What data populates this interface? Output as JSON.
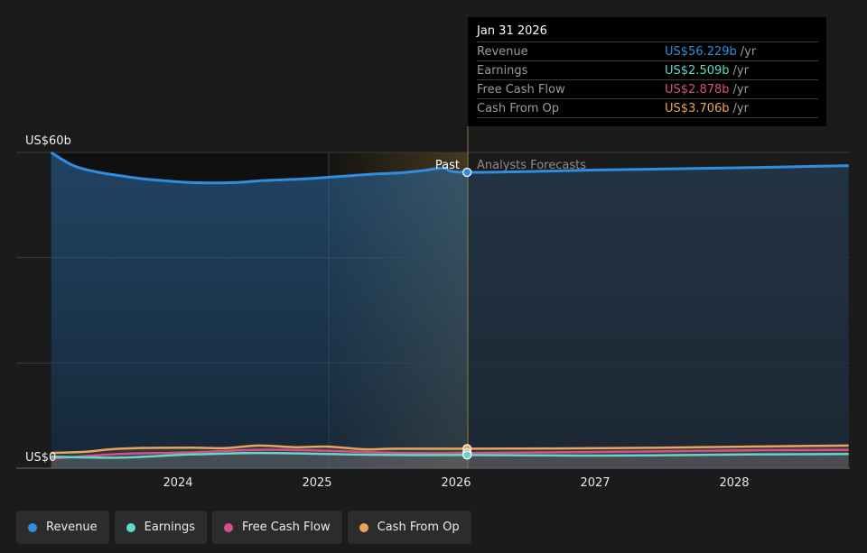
{
  "chart_data": {
    "type": "area",
    "y_axis": {
      "top_label": "US$60b",
      "bottom_label": "US$0",
      "ylim": [
        0,
        60
      ]
    },
    "x_ticks": [
      "2024",
      "2025",
      "2026",
      "2027",
      "2028"
    ],
    "past_label": "Past",
    "forecast_label": "Analysts Forecasts",
    "series": [
      {
        "name": "Revenue",
        "color": "#2e8fe0",
        "points": [
          [
            "2023-02-01",
            60.0
          ],
          [
            "2023-04-01",
            57.5
          ],
          [
            "2023-06-01",
            56.3
          ],
          [
            "2023-08-01",
            55.6
          ],
          [
            "2023-10-01",
            55.0
          ],
          [
            "2023-12-01",
            54.6
          ],
          [
            "2024-02-01",
            54.3
          ],
          [
            "2024-04-01",
            54.2
          ],
          [
            "2024-06-01",
            54.3
          ],
          [
            "2024-08-01",
            54.6
          ],
          [
            "2024-10-01",
            54.8
          ],
          [
            "2024-12-01",
            55.0
          ],
          [
            "2025-02-01",
            55.3
          ],
          [
            "2025-04-01",
            55.6
          ],
          [
            "2025-06-01",
            55.9
          ],
          [
            "2025-08-01",
            56.1
          ],
          [
            "2025-10-01",
            56.5
          ],
          [
            "2025-12-01",
            57.0
          ],
          [
            "2026-01-31",
            56.229
          ],
          [
            "2027-01-31",
            56.7
          ],
          [
            "2028-01-31",
            57.1
          ],
          [
            "2028-10-31",
            57.5
          ]
        ]
      },
      {
        "name": "Earnings",
        "color": "#5fd9c9",
        "points": [
          [
            "2023-02-01",
            2.2
          ],
          [
            "2023-08-01",
            2.0
          ],
          [
            "2024-02-01",
            2.6
          ],
          [
            "2024-08-01",
            2.9
          ],
          [
            "2025-02-01",
            2.7
          ],
          [
            "2025-08-01",
            2.5
          ],
          [
            "2026-01-31",
            2.509
          ],
          [
            "2027-01-31",
            2.4
          ],
          [
            "2028-01-31",
            2.6
          ],
          [
            "2028-10-31",
            2.7
          ]
        ]
      },
      {
        "name": "Free Cash Flow",
        "color": "#d6508a",
        "points": [
          [
            "2023-02-01",
            1.8
          ],
          [
            "2023-08-01",
            2.7
          ],
          [
            "2024-02-01",
            3.0
          ],
          [
            "2024-08-01",
            3.5
          ],
          [
            "2025-02-01",
            3.3
          ],
          [
            "2025-08-01",
            2.9
          ],
          [
            "2026-01-31",
            2.878
          ],
          [
            "2027-01-31",
            3.1
          ],
          [
            "2028-01-31",
            3.4
          ],
          [
            "2028-10-31",
            3.5
          ]
        ]
      },
      {
        "name": "Cash From Op",
        "color": "#e8a65b",
        "points": [
          [
            "2023-02-01",
            2.9
          ],
          [
            "2023-05-01",
            3.1
          ],
          [
            "2023-08-01",
            3.7
          ],
          [
            "2024-02-01",
            3.9
          ],
          [
            "2024-05-01",
            3.8
          ],
          [
            "2024-08-01",
            4.3
          ],
          [
            "2024-11-01",
            4.0
          ],
          [
            "2025-02-01",
            4.1
          ],
          [
            "2025-05-01",
            3.6
          ],
          [
            "2025-08-01",
            3.7
          ],
          [
            "2026-01-31",
            3.706
          ],
          [
            "2027-01-31",
            3.8
          ],
          [
            "2028-01-31",
            4.1
          ],
          [
            "2028-10-31",
            4.3
          ]
        ]
      }
    ]
  },
  "tooltip": {
    "date": "Jan 31 2026",
    "rows": [
      {
        "name": "Revenue",
        "value": "US$56.229b",
        "unit": "/yr",
        "color": "#2e8fe0"
      },
      {
        "name": "Earnings",
        "value": "US$2.509b",
        "unit": "/yr",
        "color": "#5fd9c9"
      },
      {
        "name": "Free Cash Flow",
        "value": "US$2.878b",
        "unit": "/yr",
        "color": "#d6508a"
      },
      {
        "name": "Cash From Op",
        "value": "US$3.706b",
        "unit": "/yr",
        "color": "#e8a65b"
      }
    ]
  },
  "legend": [
    {
      "label": "Revenue",
      "color": "#2e8fe0"
    },
    {
      "label": "Earnings",
      "color": "#5fd9c9"
    },
    {
      "label": "Free Cash Flow",
      "color": "#d6508a"
    },
    {
      "label": "Cash From Op",
      "color": "#e8a65b"
    }
  ]
}
